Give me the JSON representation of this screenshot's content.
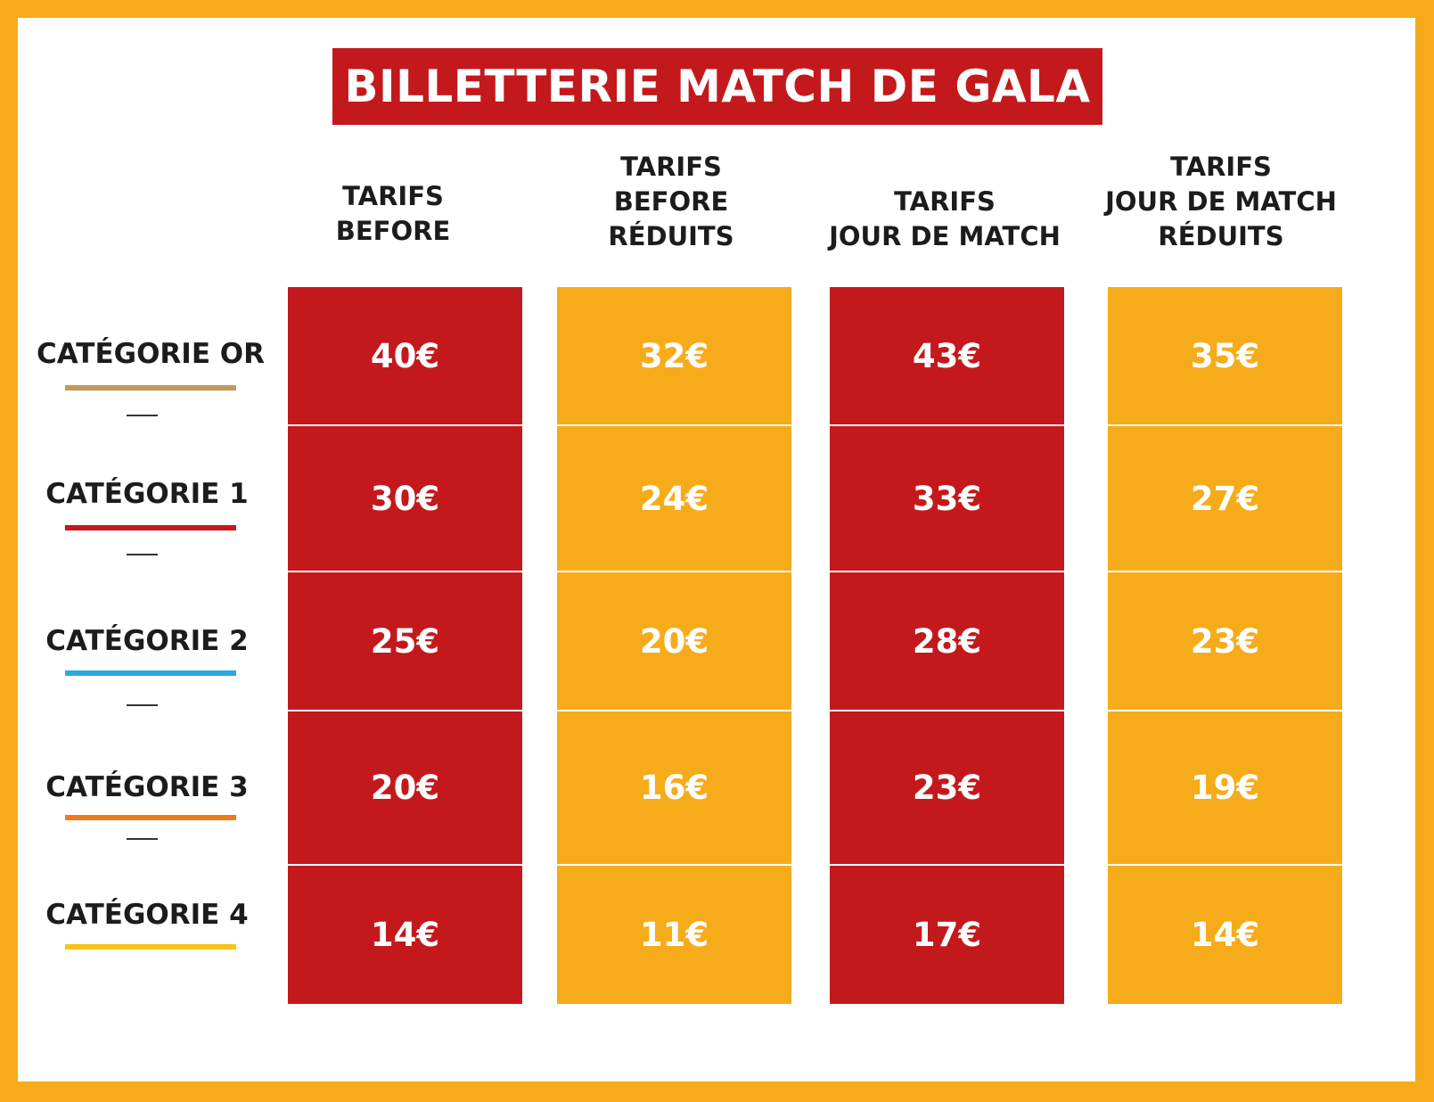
{
  "title": "BILLETTERIE MATCH DE GALA",
  "columns": [
    {
      "lines": [
        "TARIFS",
        "BEFORE"
      ]
    },
    {
      "lines": [
        "TARIFS",
        "BEFORE",
        "RÉDUITS"
      ]
    },
    {
      "lines": [
        "TARIFS",
        "JOUR DE MATCH"
      ]
    },
    {
      "lines": [
        "TARIFS",
        "JOUR DE MATCH",
        "RÉDUITS"
      ]
    }
  ],
  "categories": [
    {
      "label": "CATÉGORIE OR",
      "color": "#c19a5b",
      "prices": [
        "40€",
        "32€",
        "43€",
        "35€"
      ]
    },
    {
      "label": "CATÉGORIE 1",
      "color": "#c4191c",
      "prices": [
        "30€",
        "24€",
        "33€",
        "27€"
      ]
    },
    {
      "label": "CATÉGORIE 2",
      "color": "#2aa9e0",
      "prices": [
        "25€",
        "20€",
        "28€",
        "23€"
      ]
    },
    {
      "label": "CATÉGORIE 3",
      "color": "#f07a1a",
      "prices": [
        "20€",
        "16€",
        "23€",
        "19€"
      ]
    },
    {
      "label": "CATÉGORIE 4",
      "color": "#f5c417",
      "prices": [
        "14€",
        "11€",
        "17€",
        "14€"
      ]
    }
  ],
  "colors": {
    "frame": "#f6ac1a",
    "red": "#c4191c",
    "yellow": "#f6ac1a",
    "text": "#1c1c1c"
  }
}
